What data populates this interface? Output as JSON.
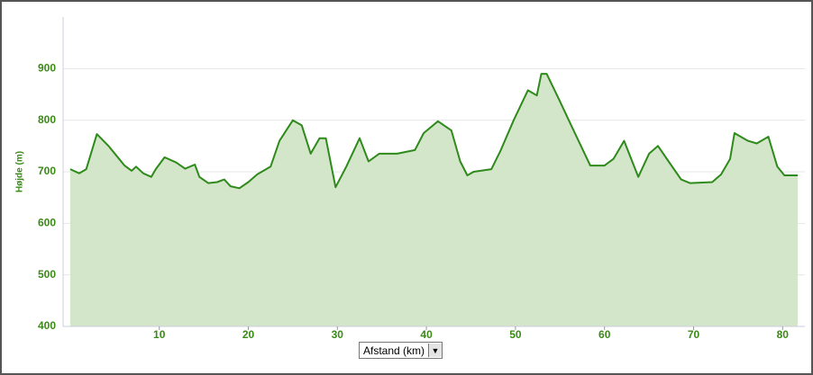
{
  "chart_data": {
    "type": "area",
    "xlabel": "Afstand (km)",
    "ylabel": "Højde (m)",
    "x": [
      0,
      1,
      1.8,
      3,
      4.3,
      6.1,
      6.9,
      7.4,
      8.2,
      9.1,
      9.6,
      10.6,
      11.9,
      12.9,
      14,
      14.5,
      15.5,
      16.5,
      17.3,
      18,
      19,
      20,
      21,
      22.5,
      23.5,
      25,
      26,
      27,
      28,
      28.7,
      29.8,
      31,
      32.5,
      33.5,
      34.7,
      36.7,
      38.7,
      39.7,
      41.3,
      42.8,
      43.8,
      44.6,
      45.3,
      47.3,
      48.3,
      49.8,
      51.4,
      52.4,
      52.9,
      53.5,
      54.9,
      56.4,
      58.4,
      60,
      61,
      62.2,
      63.8,
      65,
      66,
      67.2,
      68.6,
      69.6,
      72.1,
      73.1,
      74.1,
      74.6,
      76.1,
      77.1,
      78.4,
      79.4,
      80.2,
      81.7
    ],
    "values": [
      705,
      697,
      705,
      773,
      750,
      712,
      702,
      710,
      697,
      690,
      705,
      728,
      718,
      706,
      714,
      690,
      678,
      680,
      685,
      672,
      668,
      680,
      695,
      710,
      760,
      800,
      790,
      735,
      765,
      765,
      670,
      710,
      765,
      720,
      735,
      735,
      742,
      775,
      798,
      780,
      720,
      693,
      700,
      705,
      740,
      800,
      858,
      848,
      890,
      890,
      840,
      785,
      712,
      712,
      725,
      760,
      690,
      735,
      750,
      720,
      685,
      678,
      680,
      695,
      725,
      775,
      760,
      755,
      768,
      710,
      693,
      693
    ],
    "color": "#2f8a1c",
    "fill": "#d3e6c9",
    "xlim": [
      -0.8,
      82.5
    ],
    "xticks": [
      10,
      20,
      30,
      40,
      50,
      60,
      70,
      80
    ],
    "ylim": [
      400,
      1000
    ],
    "yticks": [
      400,
      500,
      600,
      700,
      800,
      900
    ],
    "grid": true
  }
}
